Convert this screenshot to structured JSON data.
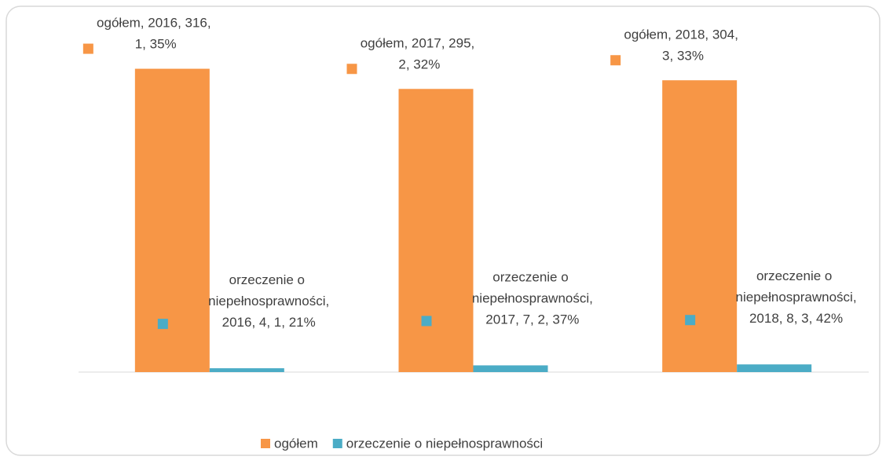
{
  "chart_data": {
    "type": "bar",
    "categories": [
      "2016",
      "2017",
      "2018"
    ],
    "series": [
      {
        "name": "ogółem",
        "color": "#f79646",
        "values": [
          316,
          295,
          304
        ],
        "value_labels": [
          "ogółem, 2016, 316, 1, 35%",
          "ogółem, 2017, 295, 2, 32%",
          "ogółem, 2018, 304, 3, 33%"
        ]
      },
      {
        "name": "orzeczenie o niepełnosprawności",
        "color": "#4bacc6",
        "values": [
          4,
          7,
          8
        ],
        "value_labels": [
          "orzeczenie o niepełnosprawności, 2016, 4, 1, 21%",
          "orzeczenie o niepełnosprawności, 2017, 7, 2, 37%",
          "orzeczenie o niepełnosprawności, 2018, 8, 3, 42%"
        ]
      }
    ],
    "ylim": [
      0,
      350
    ],
    "legend": "bottom"
  }
}
